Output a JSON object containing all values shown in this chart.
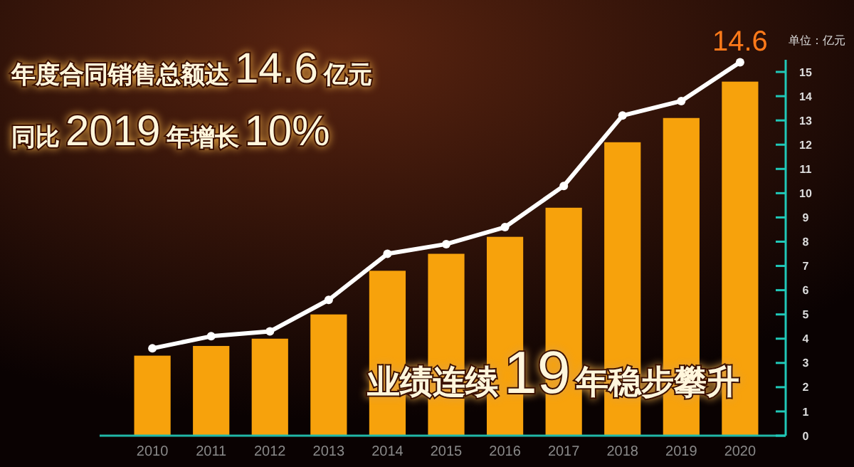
{
  "chart_data": {
    "type": "bar",
    "title": "年度合同销售总额达14.6亿元",
    "subtitle": "同比2019年增长10%",
    "ylabel": "单位：亿元",
    "annotations": [
      "业绩连续19年稳步攀升"
    ],
    "categories": [
      "2010",
      "2011",
      "2012",
      "2013",
      "2014",
      "2015",
      "2016",
      "2017",
      "2018",
      "2019",
      "2020"
    ],
    "series": [
      {
        "color": "#f7a20c",
        "values": [
          3.3,
          3.7,
          4.0,
          5.0,
          6.8,
          7.5,
          8.2,
          9.4,
          12.1,
          13.1,
          14.6
        ],
        "value_labels": [
          null,
          null,
          null,
          null,
          null,
          null,
          null,
          null,
          null,
          null,
          "14.6"
        ]
      },
      {
        "type": "line",
        "color": "#ffffff",
        "values": [
          3.6,
          4.1,
          4.3,
          5.6,
          7.5,
          7.9,
          8.6,
          10.3,
          13.2,
          13.8,
          15.4
        ]
      }
    ],
    "ylim": [
      0,
      15.5
    ],
    "yticks": [
      0,
      1,
      2,
      3,
      4,
      5,
      6,
      7,
      8,
      9,
      10,
      11,
      12,
      13,
      14,
      15
    ],
    "marker": "circle",
    "grid": false
  }
}
